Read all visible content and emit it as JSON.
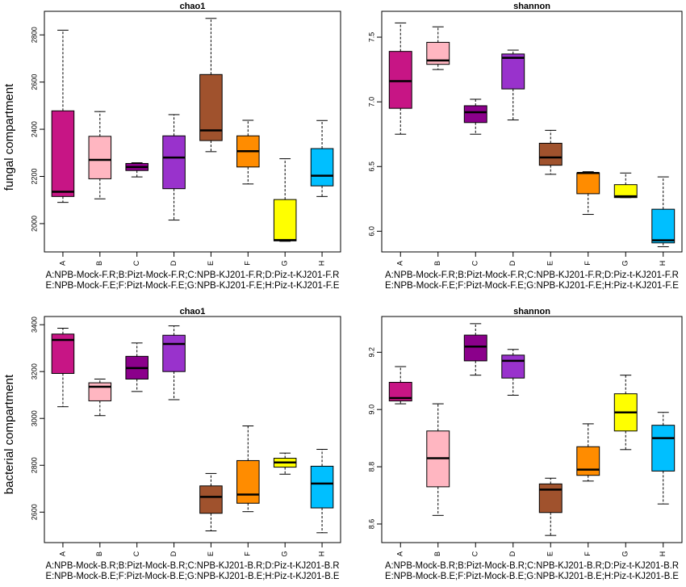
{
  "figure": {
    "row_labels": [
      "fungal compartment",
      "bacterial compartment"
    ]
  },
  "chart_data": [
    {
      "type": "boxplot",
      "title": "chao1",
      "row": "fungal compartment",
      "categories": [
        "A",
        "B",
        "C",
        "D",
        "E",
        "F",
        "G",
        "H"
      ],
      "yticks": [
        2000,
        2200,
        2400,
        2600,
        2800
      ],
      "ylim": [
        1880,
        2900
      ],
      "colors": [
        "#c71585",
        "#ffb6c1",
        "#8b008b",
        "#9932cc",
        "#a0522d",
        "#ff8c00",
        "#ffff00",
        "#00bfff"
      ],
      "boxes": [
        {
          "min": 2090,
          "q1": 2115,
          "median": 2135,
          "q3": 2478,
          "max": 2820
        },
        {
          "min": 2105,
          "q1": 2190,
          "median": 2270,
          "q3": 2370,
          "max": 2475
        },
        {
          "min": 2198,
          "q1": 2225,
          "median": 2240,
          "q3": 2255,
          "max": 2258
        },
        {
          "min": 2015,
          "q1": 2148,
          "median": 2280,
          "q3": 2372,
          "max": 2462
        },
        {
          "min": 2305,
          "q1": 2352,
          "median": 2395,
          "q3": 2632,
          "max": 2870
        },
        {
          "min": 2168,
          "q1": 2240,
          "median": 2307,
          "q3": 2372,
          "max": 2438
        },
        {
          "min": 1925,
          "q1": 1927,
          "median": 1930,
          "q3": 2102,
          "max": 2275
        },
        {
          "min": 2115,
          "q1": 2160,
          "median": 2203,
          "q3": 2318,
          "max": 2437
        }
      ],
      "legend_lines": [
        "A:NPB-Mock-F.R;B:Pizt-Mock-F.R;C:NPB-KJ201-F.R;D:Piz-t-KJ201-F.R",
        "E:NPB-Mock-F.E;F:Pizt-Mock-F.E;G:NPB-KJ201-F.E;H:Piz-t-KJ201-F.E"
      ]
    },
    {
      "type": "boxplot",
      "title": "shannon",
      "row": "fungal compartment",
      "categories": [
        "A",
        "B",
        "C",
        "D",
        "E",
        "F",
        "G",
        "H"
      ],
      "yticks": [
        "6.0",
        "6.5",
        "7.0",
        "7.5"
      ],
      "ylim": [
        5.84,
        7.7
      ],
      "colors": [
        "#c71585",
        "#ffb6c1",
        "#8b008b",
        "#9932cc",
        "#a0522d",
        "#ff8c00",
        "#ffff00",
        "#00bfff"
      ],
      "boxes": [
        {
          "min": 6.75,
          "q1": 6.95,
          "median": 7.16,
          "q3": 7.39,
          "max": 7.61
        },
        {
          "min": 7.25,
          "q1": 7.29,
          "median": 7.32,
          "q3": 7.46,
          "max": 7.58
        },
        {
          "min": 6.75,
          "q1": 6.84,
          "median": 6.92,
          "q3": 6.97,
          "max": 7.02
        },
        {
          "min": 6.86,
          "q1": 7.1,
          "median": 7.34,
          "q3": 7.37,
          "max": 7.4
        },
        {
          "min": 6.44,
          "q1": 6.51,
          "median": 6.57,
          "q3": 6.68,
          "max": 6.78
        },
        {
          "min": 6.13,
          "q1": 6.29,
          "median": 6.45,
          "q3": 6.45,
          "max": 6.46
        },
        {
          "min": 6.26,
          "q1": 6.26,
          "median": 6.27,
          "q3": 6.36,
          "max": 6.45
        },
        {
          "min": 5.88,
          "q1": 5.91,
          "median": 5.93,
          "q3": 6.17,
          "max": 6.42
        }
      ],
      "legend_lines": [
        "A:NPB-Mock-F.R;B:Pizt-Mock-F.R;C:NPB-KJ201-F.R;D:Piz-t-KJ201-F.R",
        "E:NPB-Mock-F.E;F:Pizt-Mock-F.E;G:NPB-KJ201-F.E;H:Piz-t-KJ201-F.E"
      ]
    },
    {
      "type": "boxplot",
      "title": "chao1",
      "row": "bacterial compartment",
      "categories": [
        "A",
        "B",
        "C",
        "D",
        "E",
        "F",
        "G",
        "H"
      ],
      "yticks": [
        2600,
        2800,
        3000,
        3200,
        3400
      ],
      "ylim": [
        2470,
        3435
      ],
      "colors": [
        "#c71585",
        "#ffb6c1",
        "#8b008b",
        "#9932cc",
        "#a0522d",
        "#ff8c00",
        "#ffff00",
        "#00bfff"
      ],
      "boxes": [
        {
          "min": 3050,
          "q1": 3192,
          "median": 3335,
          "q3": 3360,
          "max": 3385
        },
        {
          "min": 3012,
          "q1": 3075,
          "median": 3135,
          "q3": 3152,
          "max": 3168
        },
        {
          "min": 3115,
          "q1": 3168,
          "median": 3215,
          "q3": 3265,
          "max": 3322
        },
        {
          "min": 3080,
          "q1": 3200,
          "median": 3318,
          "q3": 3355,
          "max": 3395
        },
        {
          "min": 2520,
          "q1": 2595,
          "median": 2665,
          "q3": 2712,
          "max": 2765
        },
        {
          "min": 2602,
          "q1": 2638,
          "median": 2675,
          "q3": 2820,
          "max": 2968
        },
        {
          "min": 2762,
          "q1": 2792,
          "median": 2812,
          "q3": 2830,
          "max": 2852
        },
        {
          "min": 2512,
          "q1": 2618,
          "median": 2722,
          "q3": 2796,
          "max": 2868
        }
      ],
      "legend_lines": [
        "A:NPB-Mock-B.R;B:Pizt-Mock-B.R;C:NPB-KJ201-B.R;D:Piz-t-KJ201-B.R",
        "E:NPB-Mock-B.E;F:Pizt-Mock-B.E;G:NPB-KJ201-B.E;H:Piz-t-KJ201-B.E"
      ]
    },
    {
      "type": "boxplot",
      "title": "shannon",
      "row": "bacterial compartment",
      "categories": [
        "A",
        "B",
        "C",
        "D",
        "E",
        "F",
        "G",
        "H"
      ],
      "yticks": [
        "8.6",
        "8.8",
        "9.0",
        "9.2"
      ],
      "ylim": [
        8.535,
        9.325
      ],
      "colors": [
        "#c71585",
        "#ffb6c1",
        "#8b008b",
        "#9932cc",
        "#a0522d",
        "#ff8c00",
        "#ffff00",
        "#00bfff"
      ],
      "boxes": [
        {
          "min": 9.02,
          "q1": 9.03,
          "median": 9.04,
          "q3": 9.095,
          "max": 9.15
        },
        {
          "min": 8.63,
          "q1": 8.73,
          "median": 8.83,
          "q3": 8.925,
          "max": 9.02
        },
        {
          "min": 9.12,
          "q1": 9.17,
          "median": 9.22,
          "q3": 9.26,
          "max": 9.3
        },
        {
          "min": 9.05,
          "q1": 9.11,
          "median": 9.17,
          "q3": 9.19,
          "max": 9.21
        },
        {
          "min": 8.56,
          "q1": 8.64,
          "median": 8.72,
          "q3": 8.74,
          "max": 8.76
        },
        {
          "min": 8.75,
          "q1": 8.77,
          "median": 8.79,
          "q3": 8.87,
          "max": 8.95
        },
        {
          "min": 8.86,
          "q1": 8.925,
          "median": 8.99,
          "q3": 9.055,
          "max": 9.12
        },
        {
          "min": 8.67,
          "q1": 8.785,
          "median": 8.9,
          "q3": 8.945,
          "max": 8.99
        }
      ],
      "legend_lines": [
        "A:NPB-Mock-B.R;B:Pizt-Mock-B.R;C:NPB-KJ201-B.R;D:Piz-t-KJ201-B.R",
        "E:NPB-Mock-B.E;F:Pizt-Mock-B.E;G:NPB-KJ201-B.E;H:Piz-t-KJ201-B.E"
      ]
    }
  ]
}
